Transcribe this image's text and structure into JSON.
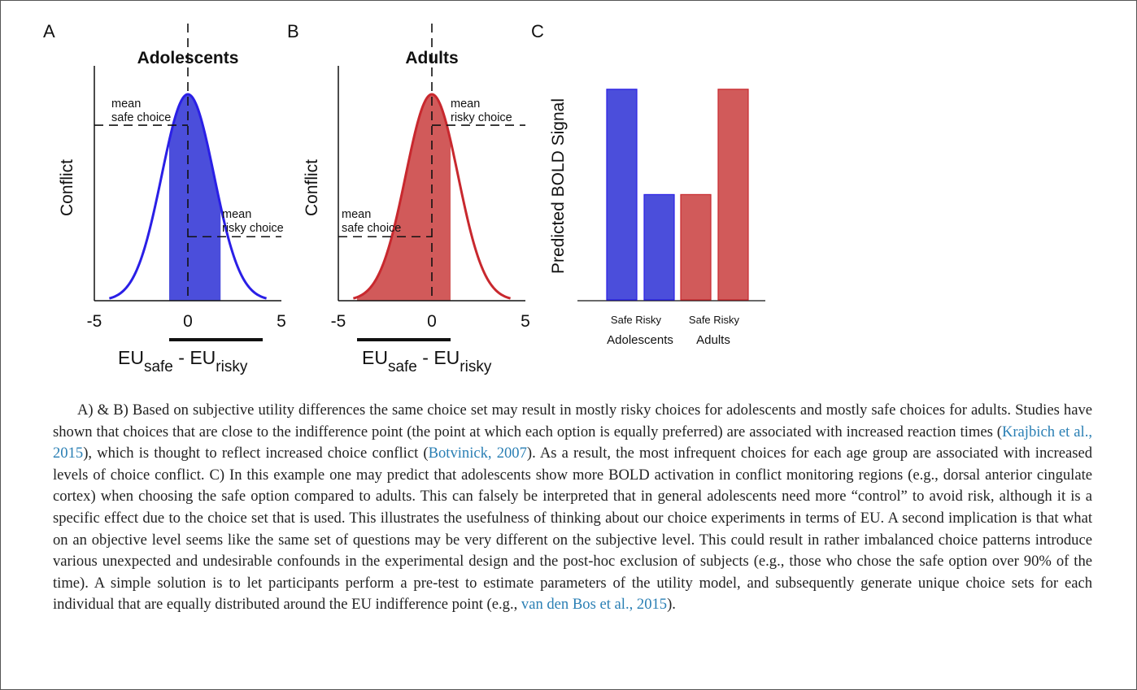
{
  "figure": {
    "colors": {
      "adolescents": "#4b4edb",
      "adolescents_line": "#2a1fe6",
      "adults": "#d15a5a",
      "adults_line": "#c8282e"
    },
    "panels": [
      {
        "letter": "A",
        "title": "Adolescents",
        "ylabel": "Conflict",
        "xticks": [
          "-5",
          "0",
          "5"
        ],
        "xlabel_main": "EU",
        "xlabel_sub1": "safe",
        "xlabel_mid": " - EU",
        "xlabel_sub2": "risky",
        "safe_label": [
          "mean",
          "safe choice"
        ],
        "risky_label": [
          "mean",
          "risky choice"
        ]
      },
      {
        "letter": "B",
        "title": "Adults",
        "ylabel": "Conflict",
        "xticks": [
          "-5",
          "0",
          "5"
        ],
        "xlabel_main": "EU",
        "xlabel_sub1": "safe",
        "xlabel_mid": " - EU",
        "xlabel_sub2": "risky",
        "safe_label": [
          "mean",
          "safe choice"
        ],
        "risky_label": [
          "mean",
          "risky choice"
        ]
      },
      {
        "letter": "C",
        "ylabel": "Predicted BOLD Signal",
        "group_ticks": [
          "Safe Risky",
          "Safe Risky"
        ],
        "groups": [
          "Adolescents",
          "Adults"
        ]
      }
    ]
  },
  "chart_data": [
    {
      "type": "area",
      "title": "Adolescents",
      "ylabel": "Conflict",
      "xlim": [
        -5,
        5
      ],
      "curve": "gaussian",
      "mean": 0,
      "sd": 1.4,
      "shaded_range": [
        -1,
        1.75
      ],
      "mean_safe_choice_x": 0,
      "mean_risky_choice_x": 0,
      "mean_safe_choice_level": 0.85,
      "mean_risky_choice_level": 0.31,
      "underline_x_range": [
        -1,
        4
      ]
    },
    {
      "type": "area",
      "title": "Adults",
      "ylabel": "Conflict",
      "xlim": [
        -5,
        5
      ],
      "curve": "gaussian",
      "mean": 0,
      "sd": 1.4,
      "shaded_range": [
        -4,
        1
      ],
      "mean_safe_choice_x": 0,
      "mean_risky_choice_x": 0,
      "mean_safe_choice_level": 0.31,
      "mean_risky_choice_level": 0.85,
      "underline_x_range": [
        -4,
        1
      ]
    },
    {
      "type": "bar",
      "ylabel": "Predicted BOLD Signal",
      "groups": [
        "Adolescents",
        "Adults"
      ],
      "categories": [
        "Safe",
        "Risky",
        "Safe",
        "Risky"
      ],
      "values": [
        0.9,
        0.45,
        0.45,
        0.9
      ],
      "ylim": [
        0,
        1
      ]
    }
  ],
  "caption": [
    {
      "text": "A) & B) Based on subjective utility differences the same choice set may result in mostly risky choices for adolescents and mostly safe choices for adults. Studies have shown that choices that are close to the indifference point (the point at which each option is equally preferred) are associated with increased reaction times ("
    },
    {
      "text": "Krajbich et al., 2015",
      "ref": true
    },
    {
      "text": "), which is thought to reflect increased choice conflict ("
    },
    {
      "text": "Botvinick, 2007",
      "ref": true
    },
    {
      "text": "). As a result, the most infrequent choices for each age group are associated with increased levels of choice conflict. C) In this example one may predict that adolescents show more BOLD activation in conflict monitoring regions (e.g., dorsal anterior cingulate cortex) when choosing the safe option compared to adults. This can falsely be interpreted that in general adolescents need more “control” to avoid risk, although it is a specific effect due to the choice set that is used. This illustrates the usefulness of thinking about our choice experiments in terms of EU. A second implication is that what on an objective level seems like the same set of questions may be very different on the subjective level. This could result in rather imbalanced choice patterns introduce various unexpected and undesirable confounds in the experimental design and the post-hoc exclusion of subjects (e.g., those who chose the safe option over 90% of the time). A simple solution is to let participants perform a pre-test to estimate parameters of the utility model, and subsequently generate unique choice sets for each individual that are equally distributed around the EU indifference point (e.g., "
    },
    {
      "text": "van den Bos et al., 2015",
      "ref": true
    },
    {
      "text": ")."
    }
  ]
}
